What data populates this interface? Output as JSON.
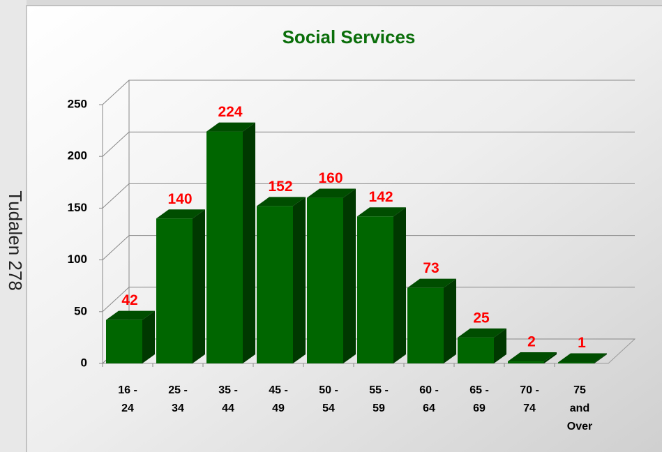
{
  "page_label": "Tudalen 278",
  "chart_data": {
    "type": "bar3d",
    "title": "Social Services",
    "categories": [
      [
        "16 -",
        "24"
      ],
      [
        "25 -",
        "34"
      ],
      [
        "35 -",
        "44"
      ],
      [
        "45 -",
        "49"
      ],
      [
        "50 -",
        "54"
      ],
      [
        "55 -",
        "59"
      ],
      [
        "60 -",
        "64"
      ],
      [
        "65 -",
        "69"
      ],
      [
        "70 -",
        "74"
      ],
      [
        "75",
        "and",
        "Over"
      ]
    ],
    "values": [
      42,
      140,
      224,
      152,
      160,
      142,
      73,
      25,
      2,
      1
    ],
    "color": "#006600",
    "label_color": "#ff0000",
    "ylim": [
      0,
      250
    ],
    "yticks": [
      0,
      50,
      100,
      150,
      200,
      250
    ],
    "grid": true
  }
}
